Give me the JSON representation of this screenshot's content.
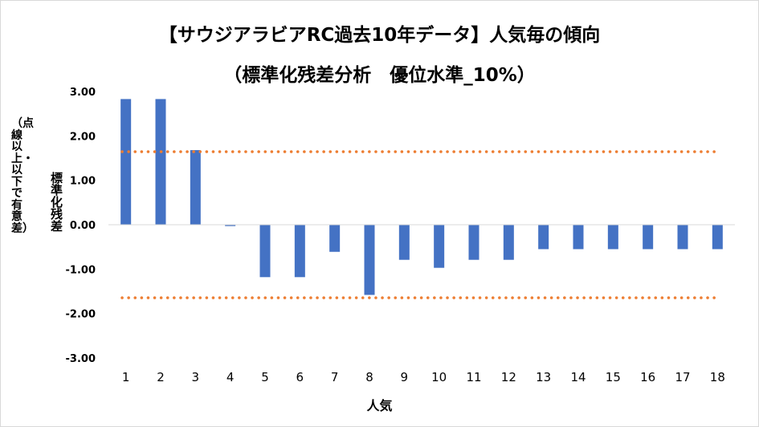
{
  "chart_data": {
    "type": "bar",
    "title": "【サウジアラビアRC過去10年データ】人気毎の傾向",
    "subtitle": "（標準化残差分析　優位水準_10%）",
    "xlabel": "人気",
    "ylabel": "標準化残差",
    "ylabel_note": "（点線以上・以下で有意差）",
    "categories": [
      "1",
      "2",
      "3",
      "4",
      "5",
      "6",
      "7",
      "8",
      "9",
      "10",
      "11",
      "12",
      "13",
      "14",
      "15",
      "16",
      "17",
      "18"
    ],
    "values": [
      2.83,
      2.83,
      1.68,
      -0.03,
      -1.18,
      -1.18,
      -0.61,
      -1.58,
      -0.79,
      -0.97,
      -0.79,
      -0.79,
      -0.55,
      -0.55,
      -0.55,
      -0.55,
      -0.55,
      -0.55
    ],
    "yticks": [
      "3.00",
      "2.00",
      "1.00",
      "0.00",
      "-1.00",
      "-2.00",
      "-3.00"
    ],
    "ylim": [
      -3,
      3
    ],
    "thresholds": [
      1.645,
      -1.645
    ],
    "grid": false,
    "legend": "none",
    "colors": {
      "bar": "#4472c4",
      "threshold": "#ed7d31",
      "axis": "#d9d9d9"
    }
  }
}
